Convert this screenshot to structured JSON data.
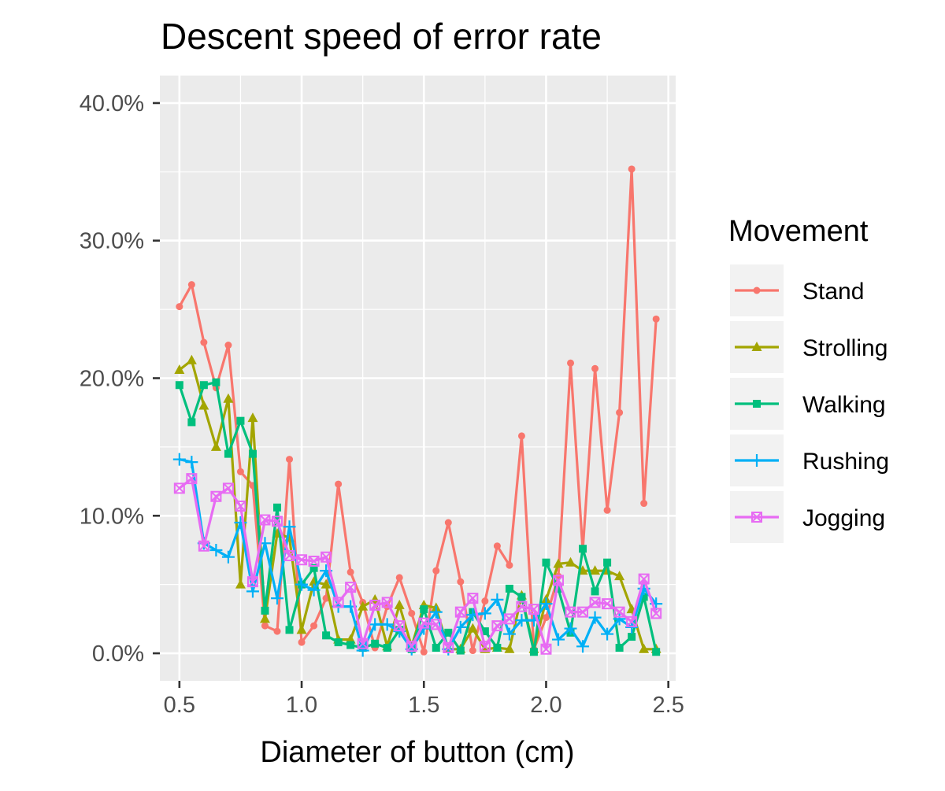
{
  "chart_data": {
    "type": "line",
    "title": "Descent speed of error rate",
    "xlabel": "Diameter of button (cm)",
    "ylabel": "",
    "xlim": [
      0.42,
      2.53
    ],
    "ylim": [
      -0.02,
      0.42
    ],
    "x_ticks": [
      0.5,
      1.0,
      1.5,
      2.0,
      2.5
    ],
    "x_tick_labels": [
      "0.5",
      "1.0",
      "1.5",
      "2.0",
      "2.5"
    ],
    "y_ticks": [
      0,
      0.1,
      0.2,
      0.3,
      0.4
    ],
    "y_tick_labels": [
      "0.0%",
      "10.0%",
      "20.0%",
      "30.0%",
      "40.0%"
    ],
    "grid": true,
    "legend_title": "Movement",
    "legend_position": "right",
    "x": [
      0.5,
      0.55,
      0.6,
      0.65,
      0.7,
      0.75,
      0.8,
      0.85,
      0.9,
      0.95,
      1.0,
      1.05,
      1.1,
      1.15,
      1.2,
      1.25,
      1.3,
      1.35,
      1.4,
      1.45,
      1.5,
      1.55,
      1.6,
      1.65,
      1.7,
      1.75,
      1.8,
      1.85,
      1.9,
      1.95,
      2.0,
      2.05,
      2.1,
      2.15,
      2.2,
      2.25,
      2.3,
      2.35,
      2.4,
      2.45
    ],
    "series": [
      {
        "name": "Stand",
        "color": "#F8766D",
        "marker": "circle",
        "values": [
          0.252,
          0.268,
          0.226,
          0.193,
          0.224,
          0.132,
          0.122,
          0.02,
          0.016,
          0.141,
          0.008,
          0.02,
          0.04,
          0.123,
          0.059,
          0.037,
          0.004,
          0.034,
          0.055,
          0.029,
          0.001,
          0.06,
          0.095,
          0.052,
          0.002,
          0.038,
          0.078,
          0.064,
          0.158,
          0.003,
          0.026,
          0.056,
          0.211,
          0.075,
          0.207,
          0.104,
          0.175,
          0.352,
          0.109,
          0.243
        ]
      },
      {
        "name": "Strolling",
        "color": "#A3A500",
        "marker": "triangle",
        "values": [
          0.206,
          0.213,
          0.18,
          0.15,
          0.185,
          0.05,
          0.171,
          0.025,
          0.087,
          0.084,
          0.017,
          0.052,
          0.05,
          0.01,
          0.01,
          0.034,
          0.039,
          0.005,
          0.035,
          0.005,
          0.035,
          0.033,
          0.003,
          0.003,
          0.018,
          0.003,
          0.004,
          0.003,
          0.042,
          0.003,
          0.039,
          0.065,
          0.066,
          0.06,
          0.06,
          0.06,
          0.056,
          0.032,
          0.003,
          0.003
        ]
      },
      {
        "name": "Walking",
        "color": "#00BF7D",
        "marker": "square",
        "values": [
          0.195,
          0.168,
          0.195,
          0.197,
          0.145,
          0.169,
          0.145,
          0.031,
          0.106,
          0.017,
          0.05,
          0.062,
          0.013,
          0.008,
          0.006,
          0.004,
          0.007,
          0.004,
          0.017,
          0.003,
          0.032,
          0.004,
          0.015,
          0.002,
          0.03,
          0.016,
          0.004,
          0.047,
          0.041,
          0.001,
          0.066,
          0.047,
          0.015,
          0.076,
          0.045,
          0.066,
          0.004,
          0.012,
          0.041,
          0.001
        ]
      },
      {
        "name": "Rushing",
        "color": "#00B0F6",
        "marker": "plus",
        "values": [
          0.141,
          0.139,
          0.08,
          0.075,
          0.07,
          0.095,
          0.045,
          0.08,
          0.04,
          0.092,
          0.05,
          0.046,
          0.06,
          0.034,
          0.034,
          0.002,
          0.021,
          0.021,
          0.016,
          0.003,
          0.018,
          0.03,
          0.003,
          0.019,
          0.028,
          0.029,
          0.039,
          0.014,
          0.024,
          0.024,
          0.036,
          0.01,
          0.018,
          0.005,
          0.026,
          0.014,
          0.025,
          0.019,
          0.047,
          0.036
        ]
      },
      {
        "name": "Jogging",
        "color": "#E76BF3",
        "marker": "square-cross",
        "values": [
          0.12,
          0.127,
          0.078,
          0.114,
          0.12,
          0.107,
          0.052,
          0.097,
          0.096,
          0.071,
          0.068,
          0.067,
          0.07,
          0.037,
          0.048,
          0.007,
          0.035,
          0.037,
          0.02,
          0.005,
          0.022,
          0.021,
          0.004,
          0.03,
          0.04,
          0.005,
          0.02,
          0.025,
          0.034,
          0.032,
          0.003,
          0.053,
          0.03,
          0.03,
          0.037,
          0.036,
          0.03,
          0.023,
          0.054,
          0.029
        ]
      }
    ]
  }
}
